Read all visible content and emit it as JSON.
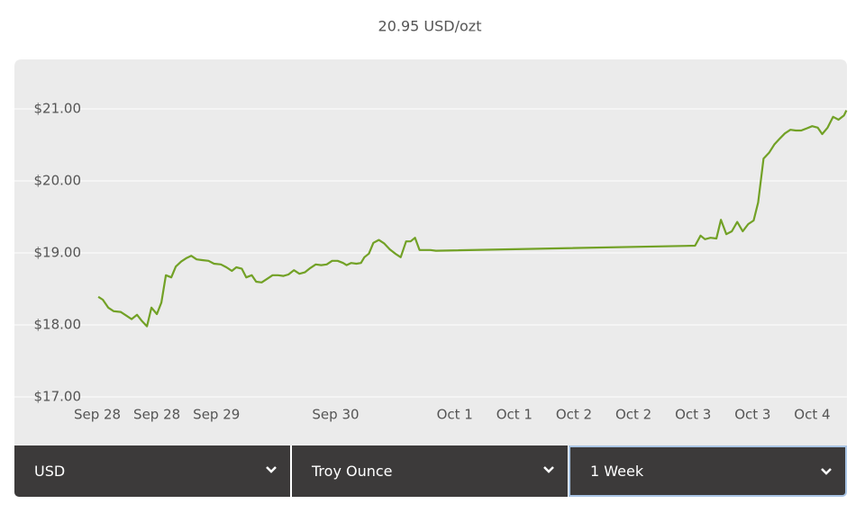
{
  "chart_data": {
    "type": "line",
    "title": "20.95 USD/ozt",
    "color": "#72a126",
    "grid": true,
    "x": [
      0.2,
      1.1,
      2.2,
      3.3,
      4.7,
      5.8,
      6.9,
      8.0,
      8.9,
      10.0,
      10.9,
      12.0,
      12.9,
      13.8,
      14.9,
      15.8,
      16.9,
      18.0,
      18.9,
      20.0,
      21.1,
      22.4,
      23.5,
      24.9,
      26.0,
      27.1,
      28.0,
      29.1,
      30.0,
      31.1,
      32.0,
      33.1,
      34.2,
      35.3,
      36.4,
      37.5,
      38.5,
      39.6,
      40.7,
      41.8,
      42.9,
      44.0,
      45.1,
      46.2,
      47.3,
      48.4,
      49.5,
      50.2,
      51.1,
      52.2,
      53.1,
      53.8,
      54.7,
      55.6,
      56.7,
      57.8,
      58.9,
      60.0,
      61.1,
      62.2,
      63.1,
      64.0,
      64.9,
      66.2,
      67.1,
      68.2,
      120.4,
      121.5,
      122.4,
      123.5,
      124.7,
      125.6,
      126.7,
      127.8,
      128.9,
      130.0,
      131.1,
      132.2,
      133.1,
      134.2,
      135.3,
      136.4,
      137.5,
      138.5,
      139.6,
      140.7,
      141.8,
      142.9,
      144.0,
      145.1,
      146.0,
      147.1,
      148.2,
      149.3,
      150.4,
      150.9
    ],
    "values": [
      18.39,
      18.35,
      18.24,
      18.19,
      18.18,
      18.13,
      18.08,
      18.14,
      18.06,
      17.98,
      18.24,
      18.15,
      18.31,
      18.69,
      18.66,
      18.81,
      18.88,
      18.93,
      18.96,
      18.91,
      18.9,
      18.89,
      18.85,
      18.84,
      18.8,
      18.75,
      18.8,
      18.78,
      18.66,
      18.69,
      18.6,
      18.59,
      18.64,
      18.69,
      18.69,
      18.68,
      18.7,
      18.76,
      18.71,
      18.73,
      18.79,
      18.84,
      18.83,
      18.84,
      18.89,
      18.89,
      18.86,
      18.83,
      18.86,
      18.85,
      18.86,
      18.94,
      18.99,
      19.14,
      19.18,
      19.13,
      19.05,
      18.99,
      18.94,
      19.16,
      19.16,
      19.21,
      19.04,
      19.04,
      19.04,
      19.03,
      19.1,
      19.24,
      19.19,
      19.21,
      19.2,
      19.46,
      19.26,
      19.3,
      19.43,
      19.3,
      19.4,
      19.45,
      19.7,
      20.31,
      20.39,
      20.51,
      20.59,
      20.66,
      20.71,
      20.7,
      20.7,
      20.73,
      20.76,
      20.74,
      20.65,
      20.74,
      20.89,
      20.85,
      20.91,
      20.98
    ],
    "xlim": [
      -16.7,
      151
    ],
    "xticks": [
      {
        "value": 0,
        "label": "Sep 28"
      },
      {
        "value": 12,
        "label": "Sep 28"
      },
      {
        "value": 24,
        "label": "Sep 29"
      },
      {
        "value": 48,
        "label": "Sep 30"
      },
      {
        "value": 72,
        "label": "Oct 1"
      },
      {
        "value": 84,
        "label": "Oct 1"
      },
      {
        "value": 96,
        "label": "Oct 2"
      },
      {
        "value": 108,
        "label": "Oct 2"
      },
      {
        "value": 120,
        "label": "Oct 3"
      },
      {
        "value": 132,
        "label": "Oct 3"
      },
      {
        "value": 144,
        "label": "Oct 4"
      }
    ],
    "ylim": [
      17,
      21.7
    ],
    "yticks": [
      {
        "value": 17,
        "label": "$17.00"
      },
      {
        "value": 18,
        "label": "$18.00"
      },
      {
        "value": 19,
        "label": "$19.00"
      },
      {
        "value": 20,
        "label": "$20.00"
      },
      {
        "value": 21,
        "label": "$21.00"
      }
    ]
  },
  "controls": {
    "currency": "USD",
    "unit": "Troy Ounce",
    "range": "1 Week"
  }
}
